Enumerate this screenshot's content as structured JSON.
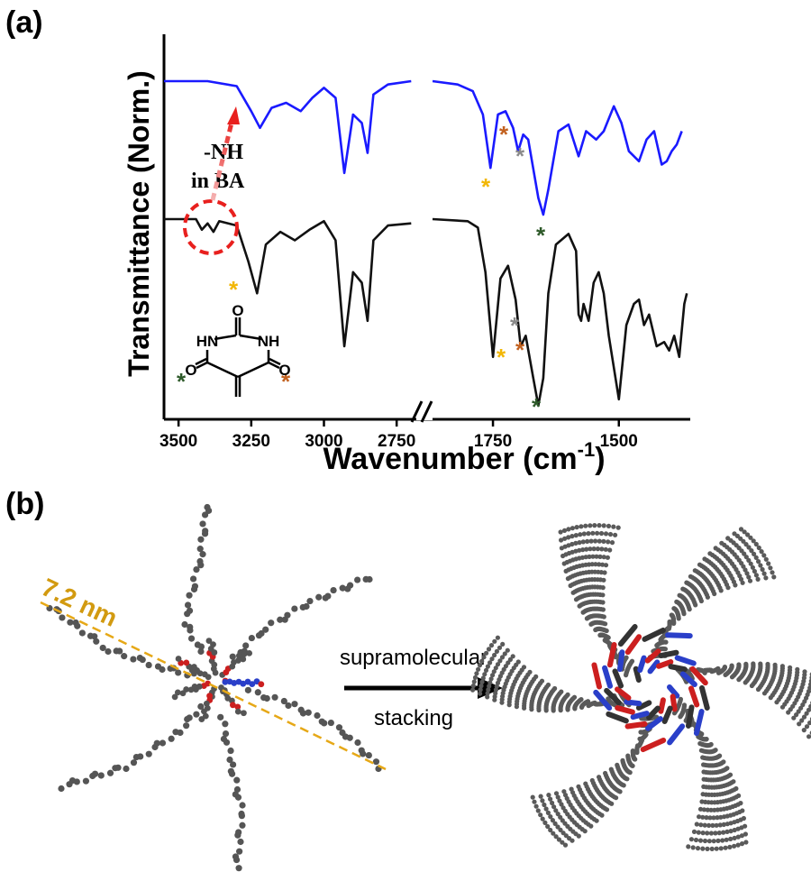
{
  "panel_a": {
    "label": "(a)",
    "chart_data": {
      "type": "line",
      "xlabel": "Wavenumber (cm",
      "xlabel_sup": "-1",
      "xlabel_close": ")",
      "ylabel": "Transmittance (Norm.)",
      "x_axis_break": true,
      "x_ranges": [
        [
          3550,
          2670
        ],
        [
          1870,
          1360
        ]
      ],
      "x_ticks": [
        3500,
        3250,
        3000,
        2750,
        1750,
        1500
      ],
      "x_tick_labels": [
        "3500",
        "3250",
        "3000",
        "2750",
        "1750",
        "1500"
      ],
      "y_reversed_scale": "normalized",
      "series": [
        {
          "color": "#1a1aff",
          "points": [
            [
              3550,
              0.0
            ],
            [
              3400,
              0.0
            ],
            [
              3300,
              0.03
            ],
            [
              3250,
              0.18
            ],
            [
              3220,
              0.28
            ],
            [
              3180,
              0.16
            ],
            [
              3130,
              0.13
            ],
            [
              3080,
              0.18
            ],
            [
              3040,
              0.1
            ],
            [
              3000,
              0.04
            ],
            [
              2960,
              0.1
            ],
            [
              2930,
              0.55
            ],
            [
              2900,
              0.2
            ],
            [
              2870,
              0.25
            ],
            [
              2850,
              0.43
            ],
            [
              2830,
              0.08
            ],
            [
              2780,
              0.02
            ],
            [
              2700,
              0.0
            ],
            [
              1870,
              0.0
            ],
            [
              1820,
              0.02
            ],
            [
              1790,
              0.06
            ],
            [
              1770,
              0.2
            ],
            [
              1755,
              0.52
            ],
            [
              1740,
              0.2
            ],
            [
              1725,
              0.18
            ],
            [
              1710,
              0.28
            ],
            [
              1700,
              0.42
            ],
            [
              1690,
              0.32
            ],
            [
              1680,
              0.35
            ],
            [
              1660,
              0.7
            ],
            [
              1650,
              0.8
            ],
            [
              1640,
              0.65
            ],
            [
              1620,
              0.3
            ],
            [
              1600,
              0.26
            ],
            [
              1580,
              0.45
            ],
            [
              1565,
              0.3
            ],
            [
              1545,
              0.35
            ],
            [
              1530,
              0.3
            ],
            [
              1510,
              0.15
            ],
            [
              1495,
              0.25
            ],
            [
              1480,
              0.42
            ],
            [
              1460,
              0.48
            ],
            [
              1445,
              0.35
            ],
            [
              1430,
              0.3
            ],
            [
              1415,
              0.5
            ],
            [
              1405,
              0.48
            ],
            [
              1395,
              0.42
            ],
            [
              1385,
              0.38
            ],
            [
              1375,
              0.3
            ]
          ]
        },
        {
          "color": "#111111",
          "points": [
            [
              3550,
              0.0
            ],
            [
              3440,
              0.0
            ],
            [
              3420,
              0.05
            ],
            [
              3400,
              0.02
            ],
            [
              3380,
              0.06
            ],
            [
              3360,
              0.01
            ],
            [
              3300,
              0.03
            ],
            [
              3260,
              0.2
            ],
            [
              3230,
              0.35
            ],
            [
              3200,
              0.12
            ],
            [
              3150,
              0.06
            ],
            [
              3100,
              0.1
            ],
            [
              3050,
              0.05
            ],
            [
              3000,
              0.01
            ],
            [
              2960,
              0.1
            ],
            [
              2930,
              0.6
            ],
            [
              2900,
              0.25
            ],
            [
              2870,
              0.3
            ],
            [
              2850,
              0.48
            ],
            [
              2830,
              0.1
            ],
            [
              2780,
              0.03
            ],
            [
              2700,
              0.02
            ],
            [
              1870,
              0.0
            ],
            [
              1800,
              0.01
            ],
            [
              1780,
              0.04
            ],
            [
              1765,
              0.25
            ],
            [
              1750,
              0.65
            ],
            [
              1735,
              0.28
            ],
            [
              1720,
              0.22
            ],
            [
              1705,
              0.38
            ],
            [
              1695,
              0.6
            ],
            [
              1685,
              0.55
            ],
            [
              1670,
              0.75
            ],
            [
              1660,
              0.88
            ],
            [
              1650,
              0.75
            ],
            [
              1640,
              0.35
            ],
            [
              1625,
              0.12
            ],
            [
              1600,
              0.07
            ],
            [
              1585,
              0.15
            ],
            [
              1580,
              0.45
            ],
            [
              1575,
              0.48
            ],
            [
              1570,
              0.4
            ],
            [
              1560,
              0.48
            ],
            [
              1550,
              0.3
            ],
            [
              1540,
              0.25
            ],
            [
              1530,
              0.35
            ],
            [
              1520,
              0.55
            ],
            [
              1500,
              0.85
            ],
            [
              1485,
              0.5
            ],
            [
              1470,
              0.4
            ],
            [
              1460,
              0.38
            ],
            [
              1450,
              0.5
            ],
            [
              1440,
              0.45
            ],
            [
              1425,
              0.6
            ],
            [
              1410,
              0.58
            ],
            [
              1400,
              0.62
            ],
            [
              1390,
              0.55
            ],
            [
              1380,
              0.65
            ],
            [
              1370,
              0.4
            ],
            [
              1365,
              0.35
            ]
          ]
        }
      ],
      "annotations": {
        "nh_text_1": "-NH",
        "nh_text_2": "in BA",
        "stars": [
          "*",
          "*",
          "*",
          "*",
          "*",
          "*",
          "*",
          "*",
          "*",
          "*",
          "*",
          "*"
        ],
        "structure_atoms": {
          "o_top": "O",
          "hn": "HN",
          "nh": "NH",
          "o_left": "O",
          "o_right": "O"
        }
      },
      "colors": {
        "yellow_star": "#f2b705",
        "orange_star": "#c2611f",
        "gray_star": "#8a8a8a",
        "green_star": "#2e5a2a",
        "highlight": "#e8201e"
      }
    }
  },
  "panel_b": {
    "label": "(b)",
    "dimension_label": "7.2 nm",
    "arrow_label_1": "supramolecular",
    "arrow_label_2": "stacking",
    "colors": {
      "carbon": "#555555",
      "oxygen": "#cc1f1f",
      "nitrogen": "#2a3fc9",
      "dimension": "#e6a817"
    }
  }
}
